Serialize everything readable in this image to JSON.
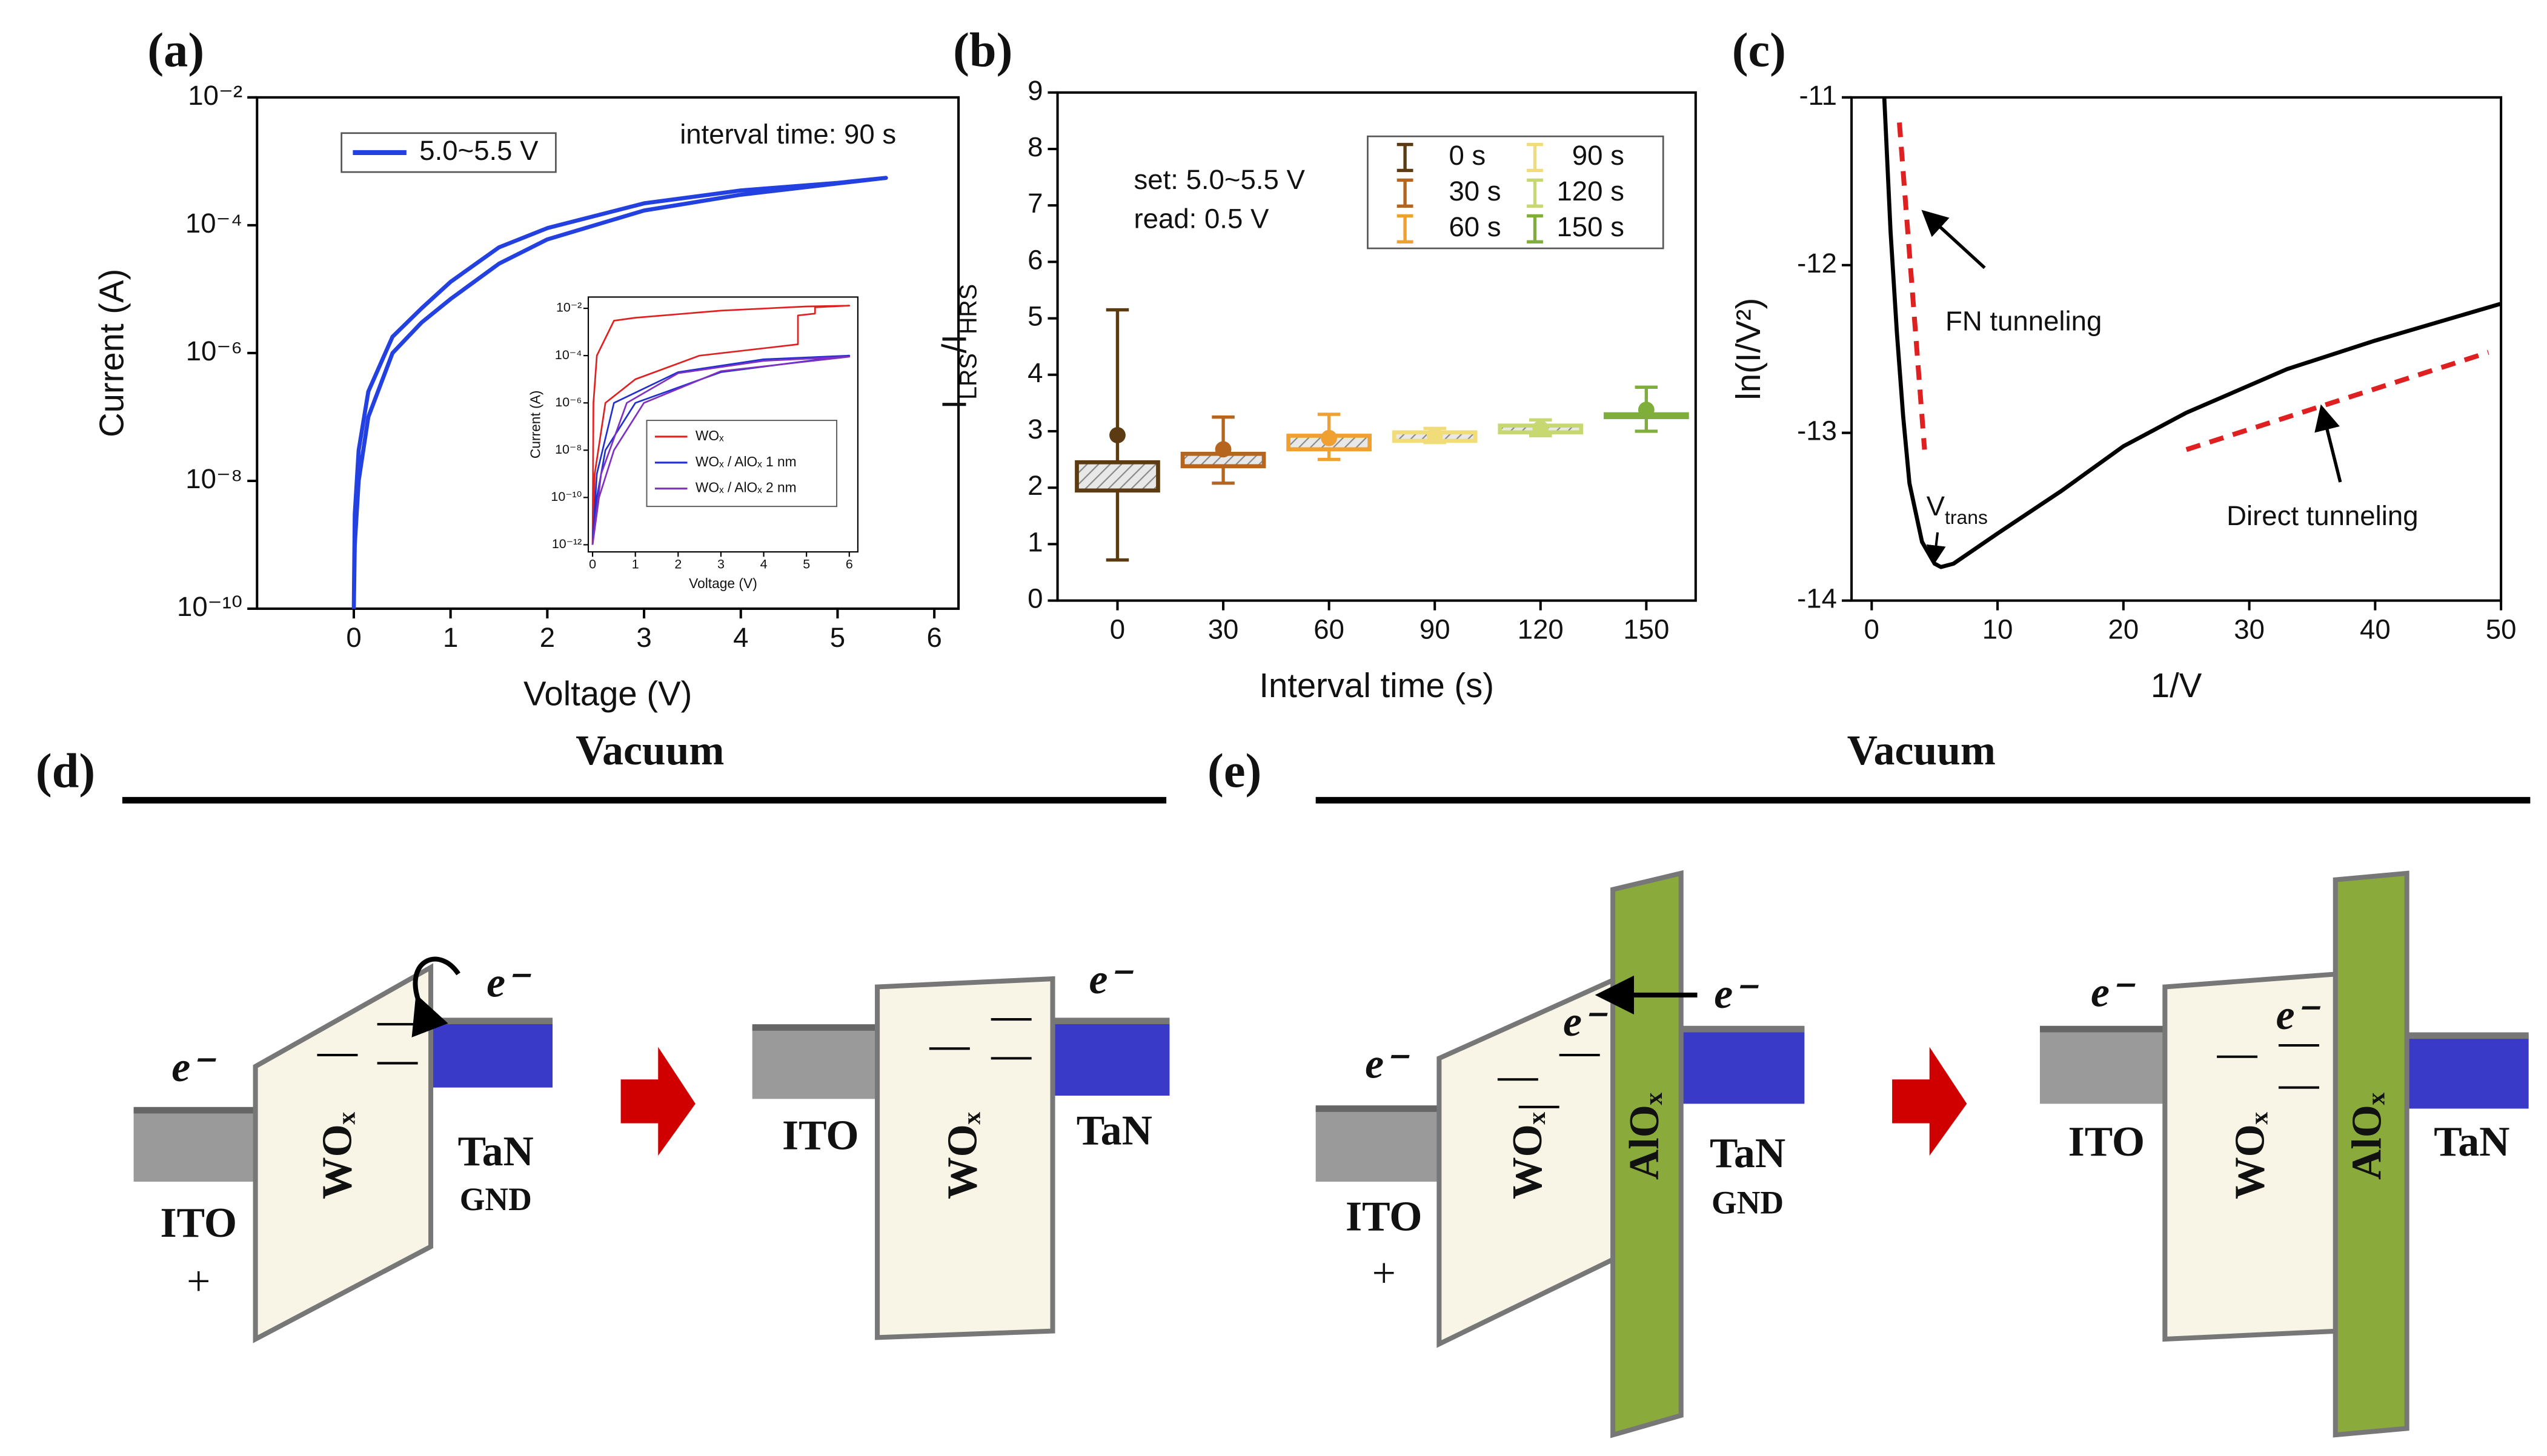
{
  "chart_data": [
    {
      "type": "line",
      "label": "(a)",
      "xlabel": "Voltage (V)",
      "ylabel": "Current (A)",
      "log_y": true,
      "xlim": [
        -1,
        6.25
      ],
      "xticks": [
        0,
        1,
        2,
        3,
        4,
        5,
        6
      ],
      "ylim": [
        1e-10,
        0.01
      ],
      "yticks": [
        {
          "value": 1e-10,
          "label": "10⁻¹⁰"
        },
        {
          "value": 1e-08,
          "label": "10⁻⁸"
        },
        {
          "value": 1e-06,
          "label": "10⁻⁶"
        },
        {
          "value": 0.0001,
          "label": "10⁻⁴"
        },
        {
          "value": 0.01,
          "label": "10⁻²"
        }
      ],
      "annotations": [
        "interval time: 90 s"
      ],
      "series": [
        {
          "name": "5.0~5.5 V",
          "color": "#2340e0",
          "x": [
            0,
            0.01,
            0.05,
            0.15,
            0.4,
            0.7,
            1,
            1.5,
            2,
            3,
            4,
            5,
            5.5,
            5,
            4,
            3,
            2,
            1.5,
            1,
            0.7,
            0.4,
            0.15,
            0.05,
            0.01,
            0
          ],
          "values": [
            1e-10,
            1e-09,
            1e-08,
            1e-07,
            1e-06,
            3e-06,
            7e-06,
            2.5e-05,
            6e-05,
            0.00017,
            0.0003,
            0.00045,
            0.00055,
            0.00046,
            0.00035,
            0.00022,
            9e-05,
            4.5e-05,
            1.3e-05,
            5e-06,
            1.8e-06,
            2.5e-07,
            3e-08,
            3e-09,
            1e-10
          ]
        }
      ],
      "inset": {
        "type": "line",
        "xlabel": "Voltage (V)",
        "ylabel": "Current (A)",
        "log_y": true,
        "xlim": [
          -0.1,
          6.2
        ],
        "xticks": [
          0,
          1,
          2,
          3,
          4,
          5,
          6
        ],
        "ylim": [
          5e-13,
          0.03
        ],
        "yticks": [
          {
            "value": 1e-12,
            "label": "10⁻¹²"
          },
          {
            "value": 1e-10,
            "label": "10⁻¹⁰"
          },
          {
            "value": 1e-08,
            "label": "10⁻⁸"
          },
          {
            "value": 1e-06,
            "label": "10⁻⁶"
          },
          {
            "value": 0.0001,
            "label": "10⁻⁴"
          },
          {
            "value": 0.01,
            "label": "10⁻²"
          }
        ],
        "series": [
          {
            "name": "WOₓ",
            "color": "#e02020",
            "x": [
              0,
              0.05,
              0.3,
              1,
              2.5,
              4.8,
              4.8,
              5.2,
              5.2,
              6,
              5,
              3,
              1,
              0.5,
              0.1,
              0.02,
              0
            ],
            "values": [
              1e-12,
              1e-09,
              1e-06,
              1e-05,
              0.0001,
              0.0003,
              0.005,
              0.006,
              0.011,
              0.013,
              0.012,
              0.008,
              0.004,
              0.003,
              0.0001,
              1e-06,
              1e-12
            ]
          },
          {
            "name": "WOₓ / AlOₓ 1 nm",
            "color": "#2030d0",
            "x": [
              0,
              0.1,
              0.3,
              1,
              3,
              6,
              4,
              2,
              0.5,
              0.1,
              0
            ],
            "values": [
              1e-12,
              1e-10,
              1e-08,
              1e-06,
              2e-05,
              0.0001,
              7e-05,
              2e-05,
              1e-06,
              1e-09,
              1e-12
            ]
          },
          {
            "name": "WOₓ / AlOₓ 2 nm",
            "color": "#8030c0",
            "x": [
              0,
              0.15,
              0.5,
              1.2,
              3,
              6,
              4,
              2,
              0.8,
              0.2,
              0
            ],
            "values": [
              1e-12,
              1e-10,
              1e-08,
              1e-06,
              2.2e-05,
              9e-05,
              6e-05,
              1.8e-05,
              1e-06,
              1e-09,
              1e-12
            ]
          }
        ]
      }
    },
    {
      "type": "box",
      "label": "(b)",
      "xlabel": "Interval time (s)",
      "ylabel": [
        "I",
        "LRS",
        "/I",
        "HRS"
      ],
      "xlim": [
        -17,
        164
      ],
      "xticks": [
        0,
        30,
        60,
        90,
        120,
        150
      ],
      "ylim": [
        0,
        9
      ],
      "yticks": [
        0,
        1,
        2,
        3,
        4,
        5,
        6,
        7,
        8,
        9
      ],
      "annotations": [
        "set: 5.0~5.5 V",
        "read: 0.5 V"
      ],
      "x": [
        0,
        30,
        60,
        90,
        120,
        150
      ],
      "series": [
        {
          "name": "0 s",
          "color": "#5c3a12",
          "min": 0.72,
          "q1": 1.95,
          "mean": 2.93,
          "q3": 2.45,
          "max": 5.15
        },
        {
          "name": "30 s",
          "color": "#b5651d",
          "min": 2.08,
          "q1": 2.38,
          "mean": 2.68,
          "q3": 2.6,
          "max": 3.25
        },
        {
          "name": "60 s",
          "color": "#f0a030",
          "min": 2.5,
          "q1": 2.68,
          "mean": 2.88,
          "q3": 2.92,
          "max": 3.3
        },
        {
          "name": "90 s",
          "color": "#f0dc78",
          "min": 2.8,
          "q1": 2.83,
          "mean": 2.93,
          "q3": 2.98,
          "max": 3.05
        },
        {
          "name": "120 s",
          "color": "#c8d870",
          "min": 2.92,
          "q1": 2.98,
          "mean": 3.05,
          "q3": 3.1,
          "max": 3.2
        },
        {
          "name": "150 s",
          "color": "#7fae3a",
          "min": 3.0,
          "q1": 3.25,
          "mean": 3.38,
          "q3": 3.3,
          "max": 3.78
        }
      ]
    },
    {
      "type": "line",
      "label": "(c)",
      "xlabel": "1/V",
      "ylabel": "ln(I/V²)",
      "xlim": [
        -1.6,
        50
      ],
      "xticks": [
        0,
        10,
        20,
        30,
        40,
        50
      ],
      "ylim": [
        -14,
        -11
      ],
      "yticks": [
        -14,
        -13,
        -12,
        -11
      ],
      "annotations": [
        "FN tunneling",
        "Direct tunneling"
      ],
      "vtrans": [
        "V",
        "trans"
      ],
      "series": [
        {
          "color": "#000000",
          "style": "solid",
          "x": [
            1,
            1.5,
            2,
            2.5,
            3,
            4,
            5,
            5.5,
            6.5,
            10,
            15,
            20,
            25,
            33,
            40,
            50
          ],
          "values": [
            -11.0,
            -11.8,
            -12.4,
            -12.9,
            -13.3,
            -13.65,
            -13.78,
            -13.8,
            -13.78,
            -13.6,
            -13.35,
            -13.08,
            -12.88,
            -12.62,
            -12.45,
            -12.23
          ]
        },
        {
          "color": "#e02020",
          "style": "dashed",
          "x": [
            2.2,
            4.2
          ],
          "values": [
            -11.15,
            -13.1
          ]
        },
        {
          "color": "#e02020",
          "style": "dashed",
          "x": [
            25,
            49
          ],
          "values": [
            -13.1,
            -12.52
          ]
        }
      ]
    }
  ],
  "diagrams": {
    "labels": [
      "(d)",
      "Vacuum",
      "(e)",
      "Vacuum",
      "e⁻",
      "e⁻",
      "WOₓ",
      "TaN",
      "GND",
      "ITO",
      "+",
      "e⁻",
      "ITO",
      "WOₓ",
      "TaN",
      "e⁻",
      "e⁻",
      "e⁻",
      "WOₓ",
      "AlOₓ",
      "TaN",
      "GND",
      "ITO",
      "+",
      "e⁻",
      "e⁻",
      "ITO",
      "WOₓ",
      "AlOₓ",
      "TaN"
    ]
  }
}
